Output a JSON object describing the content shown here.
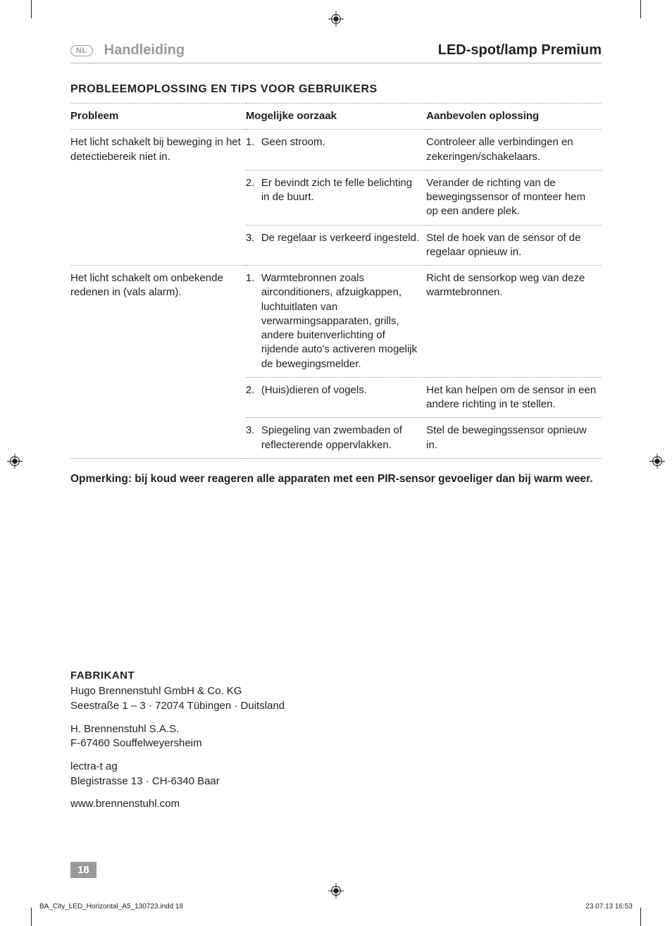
{
  "header": {
    "lang_code": "NL",
    "left": "Handleiding",
    "right": "LED-spot/lamp Premium"
  },
  "section_title": "PROBLEEMOPLOSSING EN TIPS VOOR GEBRUIKERS",
  "table": {
    "columns": [
      "Probleem",
      "Mogelijke oorzaak",
      "Aanbevolen oplossing"
    ],
    "groups": [
      {
        "problem": "Het licht schakelt bij beweging in het detectiebereik niet in.",
        "rows": [
          {
            "num": "1.",
            "cause": "Geen stroom.",
            "solution": "Controleer alle verbindingen en zekeringen/schakelaars."
          },
          {
            "num": "2.",
            "cause": "Er bevindt zich te felle belichting in de buurt.",
            "solution": "Verander de richting van de bewegingssensor of monteer hem op een andere plek."
          },
          {
            "num": "3.",
            "cause": "De regelaar is verkeerd ingesteld.",
            "solution": "Stel de hoek van de sensor of de regelaar opnieuw in."
          }
        ]
      },
      {
        "problem": "Het licht schakelt om onbekende redenen in (vals alarm).",
        "rows": [
          {
            "num": "1.",
            "cause": "Warmtebronnen zoals airconditioners, afzuigkappen, luchtuitlaten van verwarmingsapparaten, grills, andere buitenverlichting of rijdende auto's activeren mogelijk de bewegingsmelder.",
            "solution": "Richt de sensorkop weg van deze warmtebronnen."
          },
          {
            "num": "2.",
            "cause": "(Huis)dieren of vogels.",
            "solution": "Het kan helpen om de sensor in een andere richting in te stellen."
          },
          {
            "num": "3.",
            "cause": "Spiegeling van zwembaden of reflecterende oppervlakken.",
            "solution": "Stel de bewegingssensor opnieuw in."
          }
        ]
      }
    ]
  },
  "note": "Opmerking: bij koud weer reageren alle apparaten met een PIR-sensor gevoeliger dan bij warm weer.",
  "manufacturer": {
    "title": "FABRIKANT",
    "lines": [
      "Hugo Brennenstuhl GmbH & Co. KG\nSeestraße 1 – 3 · 72074 Tübingen · Duitsland",
      "H. Brennenstuhl S.A.S.\nF-67460 Souffelweyersheim",
      "lectra-t ag\nBlegistrasse 13 · CH-6340 Baar",
      "www.brennenstuhl.com"
    ]
  },
  "page_number": "18",
  "footer": {
    "left": "BA_City_LED_Horizontal_A5_130723.indd   18",
    "right": "23.07.13   16:53"
  },
  "colors": {
    "text": "#231f20",
    "muted": "#9a9a9a",
    "rule": "#b3b3b3",
    "badge_bg": "#9a9a9a",
    "badge_fg": "#ffffff",
    "background": "#ffffff"
  },
  "typography": {
    "body_fontsize_pt": 11,
    "header_fontsize_pt": 15,
    "section_title_fontsize_pt": 12
  }
}
